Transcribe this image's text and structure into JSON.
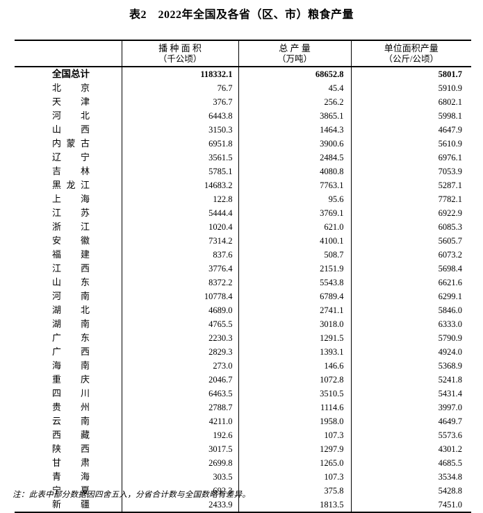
{
  "page": {
    "title": "表2　2022年全国及各省（区、市）粮食产量",
    "note": "注：此表中部分数据因四舍五入，分省合计数与全国数略有差异。"
  },
  "colors": {
    "text": "#000000",
    "background": "#ffffff",
    "rule": "#000000"
  },
  "table": {
    "headers": [
      {
        "line1": "播 种 面 积",
        "line2": "（千公顷）"
      },
      {
        "line1": "总 产 量",
        "line2": "（万吨）"
      },
      {
        "line1": "单位面积产量",
        "line2": "（公斤/公顷）"
      }
    ],
    "rows": [
      {
        "name": "全国总计",
        "bold": true,
        "values": [
          "118332.1",
          "68652.8",
          "5801.7"
        ]
      },
      {
        "name": "北京",
        "bold": false,
        "values": [
          "76.7",
          "45.4",
          "5910.9"
        ]
      },
      {
        "name": "天津",
        "bold": false,
        "values": [
          "376.7",
          "256.2",
          "6802.1"
        ]
      },
      {
        "name": "河北",
        "bold": false,
        "values": [
          "6443.8",
          "3865.1",
          "5998.1"
        ]
      },
      {
        "name": "山西",
        "bold": false,
        "values": [
          "3150.3",
          "1464.3",
          "4647.9"
        ]
      },
      {
        "name": "内蒙古",
        "bold": false,
        "values": [
          "6951.8",
          "3900.6",
          "5610.9"
        ]
      },
      {
        "name": "辽宁",
        "bold": false,
        "values": [
          "3561.5",
          "2484.5",
          "6976.1"
        ]
      },
      {
        "name": "吉林",
        "bold": false,
        "values": [
          "5785.1",
          "4080.8",
          "7053.9"
        ]
      },
      {
        "name": "黑龙江",
        "bold": false,
        "values": [
          "14683.2",
          "7763.1",
          "5287.1"
        ]
      },
      {
        "name": "上海",
        "bold": false,
        "values": [
          "122.8",
          "95.6",
          "7782.1"
        ]
      },
      {
        "name": "江苏",
        "bold": false,
        "values": [
          "5444.4",
          "3769.1",
          "6922.9"
        ]
      },
      {
        "name": "浙江",
        "bold": false,
        "values": [
          "1020.4",
          "621.0",
          "6085.3"
        ]
      },
      {
        "name": "安徽",
        "bold": false,
        "values": [
          "7314.2",
          "4100.1",
          "5605.7"
        ]
      },
      {
        "name": "福建",
        "bold": false,
        "values": [
          "837.6",
          "508.7",
          "6073.2"
        ]
      },
      {
        "name": "江西",
        "bold": false,
        "values": [
          "3776.4",
          "2151.9",
          "5698.4"
        ]
      },
      {
        "name": "山东",
        "bold": false,
        "values": [
          "8372.2",
          "5543.8",
          "6621.6"
        ]
      },
      {
        "name": "河南",
        "bold": false,
        "values": [
          "10778.4",
          "6789.4",
          "6299.1"
        ]
      },
      {
        "name": "湖北",
        "bold": false,
        "values": [
          "4689.0",
          "2741.1",
          "5846.0"
        ]
      },
      {
        "name": "湖南",
        "bold": false,
        "values": [
          "4765.5",
          "3018.0",
          "6333.0"
        ]
      },
      {
        "name": "广东",
        "bold": false,
        "values": [
          "2230.3",
          "1291.5",
          "5790.9"
        ]
      },
      {
        "name": "广西",
        "bold": false,
        "values": [
          "2829.3",
          "1393.1",
          "4924.0"
        ]
      },
      {
        "name": "海南",
        "bold": false,
        "values": [
          "273.0",
          "146.6",
          "5368.9"
        ]
      },
      {
        "name": "重庆",
        "bold": false,
        "values": [
          "2046.7",
          "1072.8",
          "5241.8"
        ]
      },
      {
        "name": "四川",
        "bold": false,
        "values": [
          "6463.5",
          "3510.5",
          "5431.4"
        ]
      },
      {
        "name": "贵州",
        "bold": false,
        "values": [
          "2788.7",
          "1114.6",
          "3997.0"
        ]
      },
      {
        "name": "云南",
        "bold": false,
        "values": [
          "4211.0",
          "1958.0",
          "4649.7"
        ]
      },
      {
        "name": "西藏",
        "bold": false,
        "values": [
          "192.6",
          "107.3",
          "5573.6"
        ]
      },
      {
        "name": "陕西",
        "bold": false,
        "values": [
          "3017.5",
          "1297.9",
          "4301.2"
        ]
      },
      {
        "name": "甘肃",
        "bold": false,
        "values": [
          "2699.8",
          "1265.0",
          "4685.5"
        ]
      },
      {
        "name": "青海",
        "bold": false,
        "values": [
          "303.5",
          "107.3",
          "3534.8"
        ]
      },
      {
        "name": "宁夏",
        "bold": false,
        "values": [
          "692.3",
          "375.8",
          "5428.8"
        ]
      },
      {
        "name": "新疆",
        "bold": false,
        "values": [
          "2433.9",
          "1813.5",
          "7451.0"
        ]
      }
    ]
  }
}
